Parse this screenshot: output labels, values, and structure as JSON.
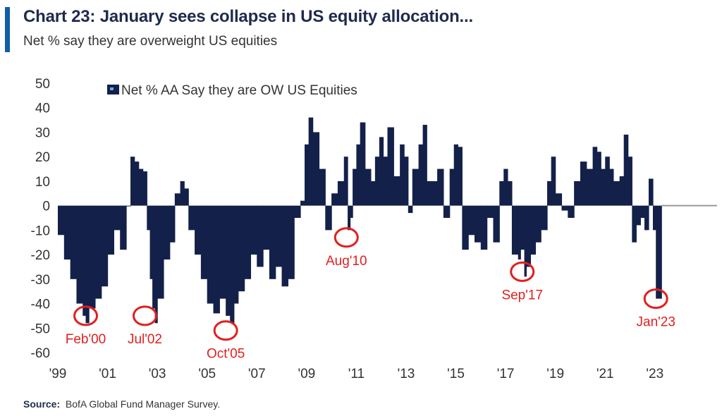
{
  "title": "Chart 23: January sees collapse in US equity allocation...",
  "subtitle": "Net % say they are overweight US equities",
  "source": {
    "label": "Source:",
    "text": "BofA Global Fund Manager Survey."
  },
  "colors": {
    "bar": "#13204a",
    "accent": "#0f5ea8",
    "annotation": "#e02020",
    "zero_line": "#999999"
  },
  "chart_data": {
    "type": "bar",
    "legend": {
      "label": "Net % AA Say they are OW US Equities",
      "position": "top-left"
    },
    "ylim": [
      -60,
      50
    ],
    "yticks": [
      50,
      40,
      30,
      20,
      10,
      0,
      -10,
      -20,
      -30,
      -40,
      -50,
      -60
    ],
    "ytick_labels": [
      "50",
      "40",
      "30",
      "20",
      "10",
      "0",
      "-10",
      "-20",
      "-30",
      "-40",
      "-50",
      "-60"
    ],
    "xlim": [
      1999.0,
      2025.5
    ],
    "xticks": [
      1999,
      2001,
      2003,
      2005,
      2007,
      2009,
      2011,
      2013,
      2015,
      2017,
      2019,
      2021,
      2023
    ],
    "xtick_labels": [
      "'99",
      "'01",
      "'03",
      "'05",
      "'07",
      "'09",
      "'11",
      "'13",
      "'15",
      "'17",
      "'19",
      "'21",
      "'23"
    ],
    "grid": false,
    "series": [
      {
        "name": "Net % AA Say they are OW US Equities",
        "points": [
          [
            1999.0,
            -12
          ],
          [
            1999.25,
            -22
          ],
          [
            1999.5,
            -30
          ],
          [
            1999.75,
            -40
          ],
          [
            2000.0,
            -45
          ],
          [
            2000.12,
            -48
          ],
          [
            2000.25,
            -42
          ],
          [
            2000.5,
            -38
          ],
          [
            2000.75,
            -33
          ],
          [
            2001.0,
            -20
          ],
          [
            2001.25,
            -10
          ],
          [
            2001.5,
            -18
          ],
          [
            2001.75,
            0
          ],
          [
            2001.92,
            20
          ],
          [
            2002.08,
            18
          ],
          [
            2002.25,
            15
          ],
          [
            2002.42,
            14
          ],
          [
            2002.58,
            -10
          ],
          [
            2002.7,
            -30
          ],
          [
            2002.8,
            -42
          ],
          [
            2002.9,
            -48
          ],
          [
            2003.0,
            -38
          ],
          [
            2003.25,
            -22
          ],
          [
            2003.5,
            -15
          ],
          [
            2003.7,
            5
          ],
          [
            2003.92,
            10
          ],
          [
            2004.08,
            7
          ],
          [
            2004.25,
            -10
          ],
          [
            2004.5,
            -20
          ],
          [
            2004.75,
            -30
          ],
          [
            2005.0,
            -40
          ],
          [
            2005.25,
            -44
          ],
          [
            2005.5,
            -38
          ],
          [
            2005.75,
            -45
          ],
          [
            2005.92,
            -48
          ],
          [
            2006.08,
            -40
          ],
          [
            2006.25,
            -35
          ],
          [
            2006.5,
            -30
          ],
          [
            2006.75,
            -20
          ],
          [
            2007.0,
            -25
          ],
          [
            2007.25,
            -18
          ],
          [
            2007.5,
            -30
          ],
          [
            2007.75,
            -25
          ],
          [
            2008.0,
            -33
          ],
          [
            2008.25,
            -30
          ],
          [
            2008.5,
            -5
          ],
          [
            2008.75,
            2
          ],
          [
            2008.92,
            25
          ],
          [
            2009.08,
            36
          ],
          [
            2009.25,
            30
          ],
          [
            2009.5,
            15
          ],
          [
            2009.75,
            -10
          ],
          [
            2010.0,
            5
          ],
          [
            2010.25,
            10
          ],
          [
            2010.5,
            20
          ],
          [
            2010.65,
            -10
          ],
          [
            2010.75,
            -5
          ],
          [
            2010.85,
            15
          ],
          [
            2011.0,
            25
          ],
          [
            2011.15,
            34
          ],
          [
            2011.35,
            15
          ],
          [
            2011.58,
            10
          ],
          [
            2011.75,
            20
          ],
          [
            2011.92,
            28
          ],
          [
            2012.08,
            20
          ],
          [
            2012.25,
            32
          ],
          [
            2012.5,
            12
          ],
          [
            2012.75,
            25
          ],
          [
            2012.92,
            20
          ],
          [
            2013.08,
            -3
          ],
          [
            2013.25,
            15
          ],
          [
            2013.5,
            25
          ],
          [
            2013.67,
            33
          ],
          [
            2013.83,
            10
          ],
          [
            2014.0,
            10
          ],
          [
            2014.25,
            15
          ],
          [
            2014.5,
            -5
          ],
          [
            2014.75,
            15
          ],
          [
            2014.92,
            25
          ],
          [
            2015.08,
            24
          ],
          [
            2015.25,
            -18
          ],
          [
            2015.5,
            -12
          ],
          [
            2015.75,
            -15
          ],
          [
            2016.0,
            -18
          ],
          [
            2016.25,
            -5
          ],
          [
            2016.5,
            -15
          ],
          [
            2016.75,
            10
          ],
          [
            2016.92,
            15
          ],
          [
            2017.08,
            10
          ],
          [
            2017.25,
            -20
          ],
          [
            2017.5,
            -22
          ],
          [
            2017.6,
            -18
          ],
          [
            2017.75,
            -29
          ],
          [
            2017.83,
            -25
          ],
          [
            2018.0,
            -20
          ],
          [
            2018.2,
            -15
          ],
          [
            2018.42,
            -10
          ],
          [
            2018.67,
            10
          ],
          [
            2018.83,
            20
          ],
          [
            2019.0,
            5
          ],
          [
            2019.25,
            -2
          ],
          [
            2019.5,
            -5
          ],
          [
            2019.75,
            10
          ],
          [
            2020.0,
            18
          ],
          [
            2020.25,
            15
          ],
          [
            2020.5,
            24
          ],
          [
            2020.67,
            22
          ],
          [
            2020.83,
            15
          ],
          [
            2021.0,
            20
          ],
          [
            2021.17,
            15
          ],
          [
            2021.33,
            10
          ],
          [
            2021.58,
            12
          ],
          [
            2021.75,
            29
          ],
          [
            2021.92,
            20
          ],
          [
            2022.08,
            -15
          ],
          [
            2022.25,
            -8
          ],
          [
            2022.42,
            -5
          ],
          [
            2022.58,
            -10
          ],
          [
            2022.75,
            11
          ],
          [
            2022.92,
            -10
          ],
          [
            2023.04,
            -38
          ]
        ]
      }
    ],
    "annotations": [
      {
        "label": "Feb'00",
        "x": 2000.12,
        "y": -45
      },
      {
        "label": "Jul'02",
        "x": 2002.5,
        "y": -45
      },
      {
        "label": "Oct'05",
        "x": 2005.75,
        "y": -51
      },
      {
        "label": "Aug'10",
        "x": 2010.6,
        "y": -13
      },
      {
        "label": "Sep'17",
        "x": 2017.67,
        "y": -27
      },
      {
        "label": "Jan'23",
        "x": 2023.04,
        "y": -38
      }
    ]
  }
}
